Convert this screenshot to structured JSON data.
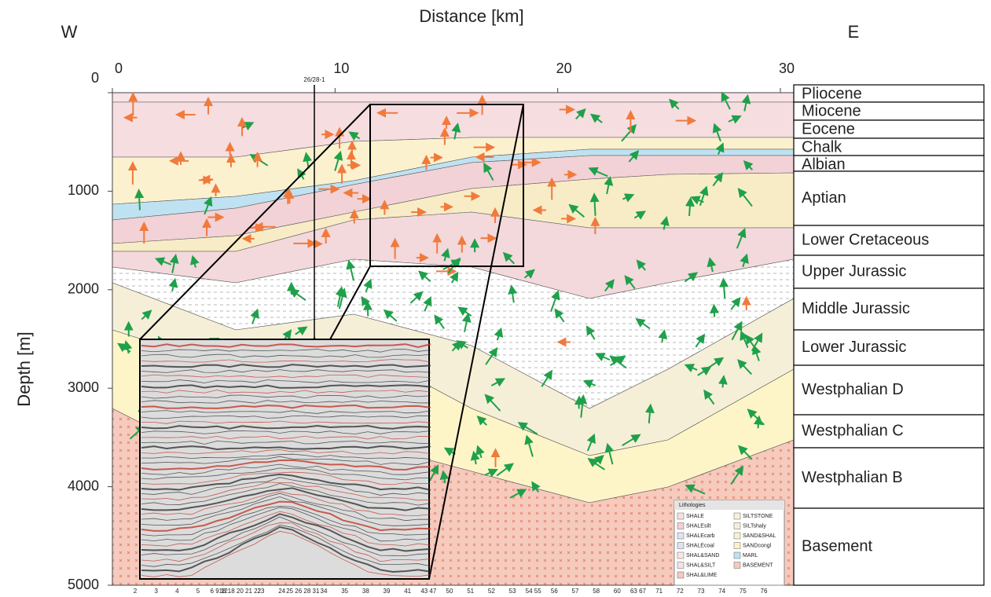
{
  "chart_data": {
    "type": "cross-section",
    "x_label": "Distance [km]",
    "y_label": "Depth [m]",
    "left_label": "W",
    "right_label": "E",
    "xlim": [
      0,
      30
    ],
    "xticks": [
      0,
      10,
      20,
      30
    ],
    "ylim": [
      5000,
      0
    ],
    "yticks": [
      0,
      1000,
      2000,
      3000,
      4000,
      5000
    ],
    "well": "26/28-1",
    "stratigraphy": [
      "Pliocene",
      "Miocene",
      "Eocene",
      "Chalk",
      "Albian",
      "Aptian",
      "Lower Cretaceous",
      "Upper Jurassic",
      "Middle Jurassic",
      "Lower Jurassic",
      "Westphalian D",
      "Westphalian C",
      "Westphalian B",
      "Basement"
    ],
    "legend": {
      "title": "Lithologies",
      "items": [
        "SHALE",
        "SHALEsilt",
        "SHALEcarb",
        "SHALEcoal",
        "SHAL&SAND",
        "SHAL&SILT",
        "SHAL&LIME",
        "SILTSTONE",
        "SILTshaly",
        "SAND&SHAL",
        "SANDcongl",
        "MARL",
        "BASEMENT"
      ]
    },
    "trace_labels": [
      "2",
      "3",
      "4",
      "5",
      "6 9 12",
      "18 18 20 21 22",
      "23",
      "24",
      "25 26 28 31",
      "34",
      "35",
      "38",
      "39",
      "41",
      "43 47",
      "50",
      "51",
      "52",
      "53",
      "54 55",
      "56",
      "57",
      "58",
      "60",
      "63 67",
      "71",
      "72",
      "73",
      "74",
      "75",
      "76"
    ]
  }
}
